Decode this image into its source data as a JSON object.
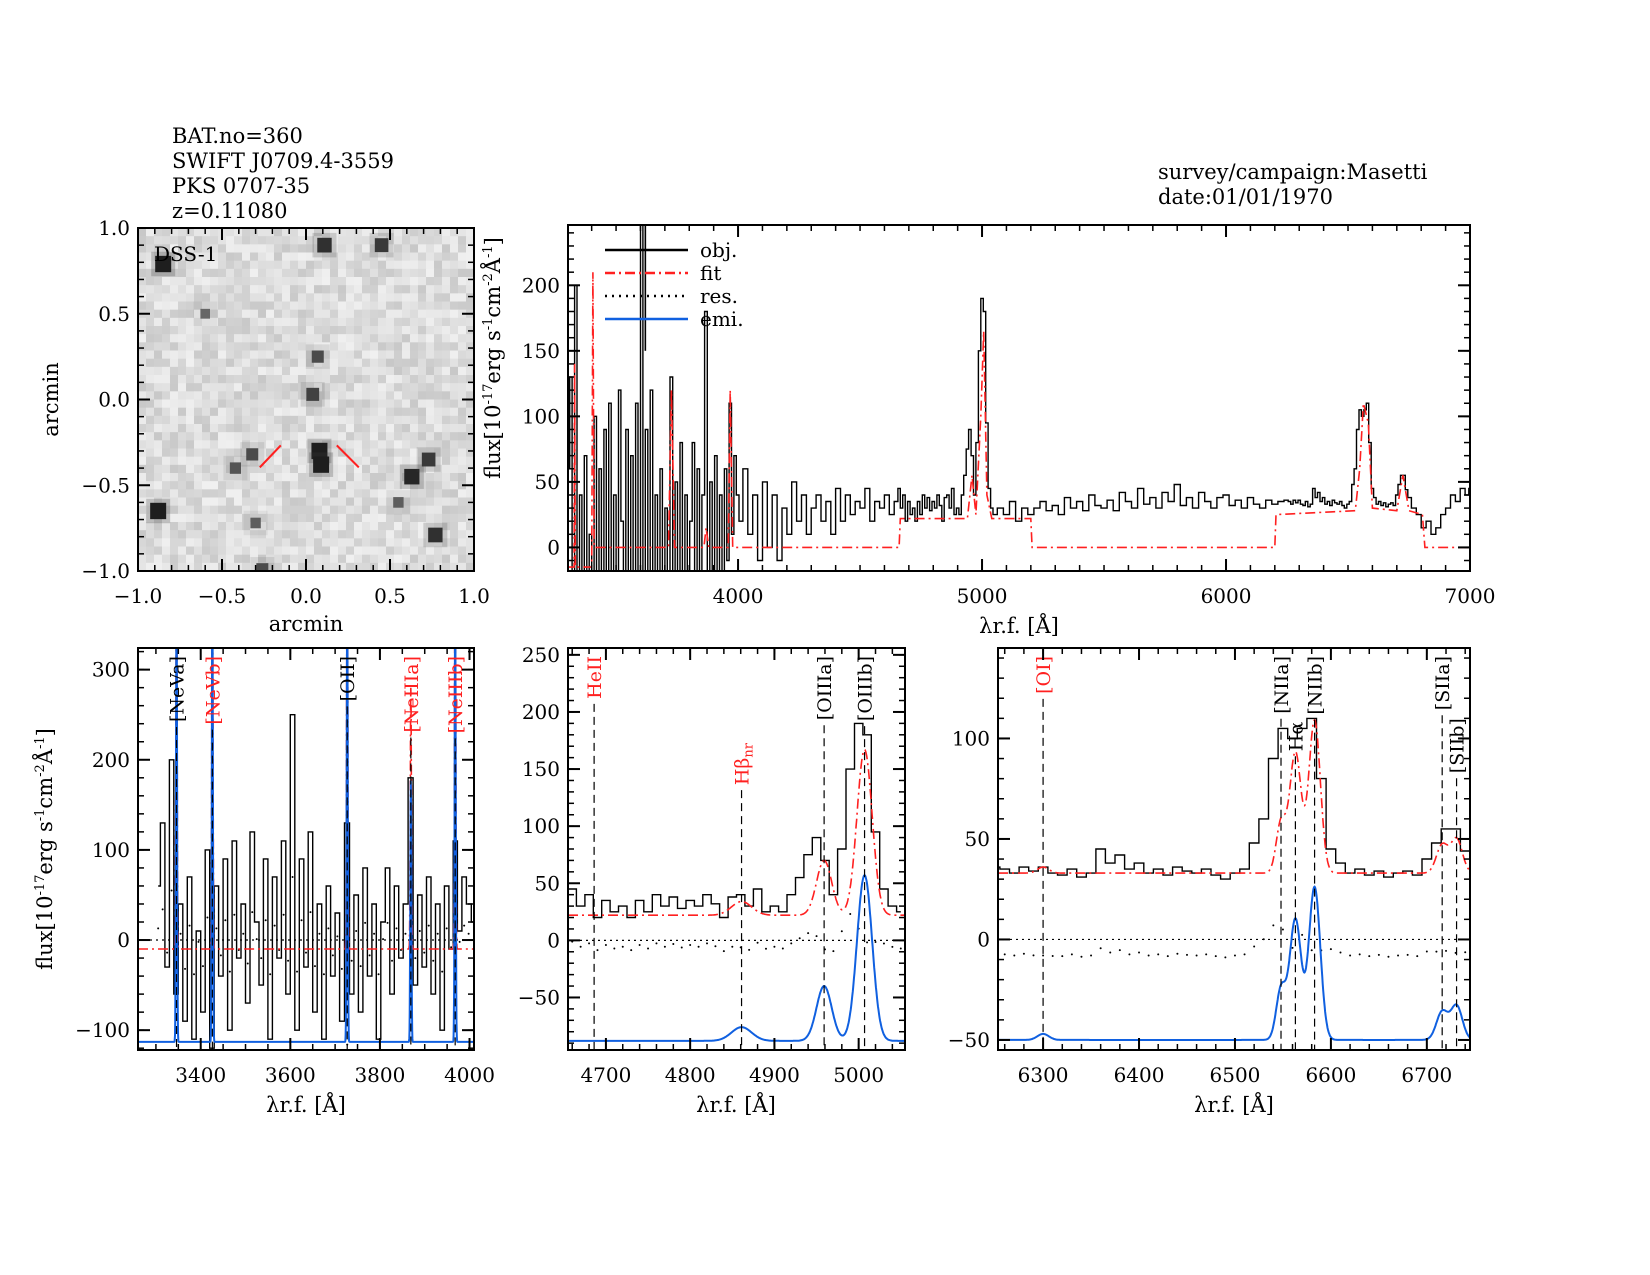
{
  "header": {
    "left": [
      "BAT.no=360",
      "SWIFT J0709.4-3559",
      "PKS 0707-35",
      "z=0.11080"
    ],
    "right": [
      "survey/campaign:Masetti",
      "date:01/01/1970"
    ]
  },
  "colors": {
    "obj": "#000000",
    "fit": "#ff2020",
    "res": "#000000",
    "emi": "#1060e0",
    "marker": "#ff2020"
  },
  "legend": [
    {
      "label": "obj.",
      "style": "solid",
      "color": "#000000"
    },
    {
      "label": "fit",
      "style": "dash-dot",
      "color": "#ff2020"
    },
    {
      "label": "res.",
      "style": "dotted",
      "color": "#000000"
    },
    {
      "label": "emi.",
      "style": "solid",
      "color": "#1060e0"
    }
  ],
  "chart_data": [
    {
      "type": "image",
      "title": "DSS-1",
      "xlabel": "arcmin",
      "ylabel": "arcmin",
      "xlim": [
        -1.0,
        1.0
      ],
      "ylim": [
        -1.0,
        1.0
      ],
      "xticks": [
        "-1.0",
        "-0.5",
        "0.0",
        "0.5",
        "1.0"
      ],
      "yticks": [
        "-1.0",
        "-0.5",
        "0.0",
        "0.5",
        "1.0"
      ],
      "stars": [
        [
          -0.85,
          0.79,
          1.0
        ],
        [
          0.11,
          0.9,
          0.8
        ],
        [
          0.45,
          0.9,
          0.7
        ],
        [
          0.07,
          0.25,
          0.5
        ],
        [
          0.04,
          0.03,
          0.6
        ],
        [
          0.08,
          -0.3,
          1.0
        ],
        [
          0.09,
          -0.38,
          1.0
        ],
        [
          -0.32,
          -0.32,
          0.5
        ],
        [
          -0.42,
          -0.4,
          0.4
        ],
        [
          0.63,
          -0.45,
          0.9
        ],
        [
          0.73,
          -0.35,
          0.7
        ],
        [
          -0.88,
          -0.65,
          1.0
        ],
        [
          0.77,
          -0.79,
          0.8
        ],
        [
          -0.26,
          -0.99,
          0.5
        ],
        [
          -0.3,
          -0.72,
          0.3
        ],
        [
          0.55,
          -0.6,
          0.3
        ],
        [
          -0.6,
          0.5,
          0.2
        ]
      ],
      "target_marker_color": "#ff2020"
    },
    {
      "type": "line",
      "xlabel": "λr.f. [Å]",
      "ylabel": "flux[10-17erg s-1cm-2Å-1]",
      "xlim": [
        3303,
        7000
      ],
      "ylim": [
        -18,
        246
      ],
      "xticks": [
        4000,
        5000,
        6000,
        7000
      ],
      "yticks": [
        0,
        50,
        100,
        150,
        200
      ],
      "legend": "top-left",
      "fit": [
        [
          3305,
          -15
        ],
        [
          3328,
          -15
        ],
        [
          3330,
          140
        ],
        [
          3333,
          -15
        ],
        [
          3400,
          -15
        ],
        [
          3405,
          210
        ],
        [
          3410,
          0
        ],
        [
          3715,
          0
        ],
        [
          3727,
          120
        ],
        [
          3740,
          0
        ],
        [
          3860,
          0
        ],
        [
          3869,
          15
        ],
        [
          3880,
          0
        ],
        [
          3960,
          0
        ],
        [
          3968,
          120
        ],
        [
          3978,
          0
        ],
        [
          4660,
          0
        ],
        [
          4665,
          22
        ],
        [
          4940,
          22
        ],
        [
          4959,
          55
        ],
        [
          4975,
          25
        ],
        [
          4995,
          100
        ],
        [
          5007,
          165
        ],
        [
          5020,
          40
        ],
        [
          5040,
          22
        ],
        [
          5200,
          22
        ],
        [
          5205,
          0
        ],
        [
          6200,
          0
        ],
        [
          6205,
          25
        ],
        [
          6530,
          28
        ],
        [
          6548,
          60
        ],
        [
          6563,
          110
        ],
        [
          6583,
          95
        ],
        [
          6600,
          30
        ],
        [
          6700,
          28
        ],
        [
          6725,
          55
        ],
        [
          6750,
          28
        ],
        [
          6805,
          25
        ],
        [
          6815,
          0
        ],
        [
          7000,
          0
        ]
      ]
    },
    {
      "type": "line",
      "xlabel": "λr.f. [Å]",
      "ylabel": "flux[10-17erg s-1cm-2Å-1]",
      "xlim": [
        3260,
        4010
      ],
      "ylim": [
        -122,
        324
      ],
      "xticks": [
        3400,
        3600,
        3800,
        4000
      ],
      "yticks": [
        -100,
        0,
        100,
        200,
        300
      ],
      "continuum": -10,
      "emi_offset": -113,
      "lines": [
        {
          "label": "[NeVa]",
          "x": 3346,
          "amp": 500,
          "sigma": 1.2,
          "color": "#000000"
        },
        {
          "label": "[NeVb]",
          "x": 3426,
          "amp": 500,
          "sigma": 1.2,
          "color": "#ff2020"
        },
        {
          "label": "[OII]",
          "x": 3727,
          "amp": 500,
          "sigma": 1.2,
          "color": "#000000"
        },
        {
          "label": "[NeIIIa]",
          "x": 3869,
          "amp": 290,
          "sigma": 1.2,
          "color": "#ff2020"
        },
        {
          "label": "[NeIIIb]",
          "x": 3968,
          "amp": 500,
          "sigma": 1.2,
          "color": "#ff2020"
        }
      ]
    },
    {
      "type": "line",
      "xlabel": "λr.f. [Å]",
      "ylabel": "",
      "xlim": [
        4655,
        5055
      ],
      "ylim": [
        -96,
        256
      ],
      "xticks": [
        4700,
        4800,
        4900,
        5000
      ],
      "yticks": [
        -50,
        0,
        50,
        100,
        150,
        200,
        250
      ],
      "continuum": 22,
      "emi_offset": -88,
      "lines": [
        {
          "label": "HeII",
          "x": 4686,
          "amp": 0,
          "sigma": 8,
          "color": "#ff2020"
        },
        {
          "label": "Hβ",
          "sub": "nr",
          "x": 4861,
          "amp": 12,
          "sigma": 12,
          "color": "#ff2020"
        },
        {
          "label": "[OIIIa]",
          "x": 4959,
          "amp": 48,
          "sigma": 9,
          "color": "#000000"
        },
        {
          "label": "[OIIIb]",
          "x": 5007,
          "amp": 145,
          "sigma": 9,
          "color": "#000000"
        }
      ]
    },
    {
      "type": "line",
      "xlabel": "λr.f. [Å]",
      "ylabel": "",
      "xlim": [
        6253,
        6745
      ],
      "ylim": [
        -55,
        145
      ],
      "xticks": [
        6300,
        6400,
        6500,
        6600,
        6700
      ],
      "yticks": [
        -50,
        0,
        50,
        100
      ],
      "continuum": 33,
      "emi_offset": -50,
      "lines": [
        {
          "label": "[OI]",
          "x": 6300,
          "amp": 3,
          "sigma": 6,
          "color": "#ff2020"
        },
        {
          "label": "[NIIa]",
          "x": 6548,
          "amp": 25,
          "sigma": 5,
          "color": "#000000"
        },
        {
          "label": "Hα",
          "x": 6563,
          "amp": 60,
          "sigma": 6,
          "color": "#000000"
        },
        {
          "label": "[NIIb]",
          "x": 6583,
          "amp": 76,
          "sigma": 6,
          "color": "#000000"
        },
        {
          "label": "[SIIa]",
          "x": 6716,
          "amp": 14,
          "sigma": 6,
          "color": "#000000"
        },
        {
          "label": "[SIIb]",
          "x": 6731,
          "amp": 17,
          "sigma": 6,
          "color": "#000000"
        }
      ]
    }
  ],
  "spectrum": {
    "x": [
      3305,
      3315,
      3325,
      3335,
      3345,
      3355,
      3365,
      3375,
      3385,
      3395,
      3405,
      3415,
      3425,
      3435,
      3445,
      3455,
      3465,
      3475,
      3485,
      3495,
      3505,
      3515,
      3525,
      3535,
      3545,
      3555,
      3565,
      3575,
      3585,
      3595,
      3605,
      3615,
      3625,
      3635,
      3645,
      3655,
      3665,
      3675,
      3685,
      3695,
      3705,
      3715,
      3727,
      3737,
      3747,
      3757,
      3767,
      3777,
      3787,
      3797,
      3807,
      3817,
      3827,
      3837,
      3847,
      3857,
      3869,
      3879,
      3889,
      3899,
      3909,
      3919,
      3929,
      3939,
      3949,
      3959,
      3968,
      3978,
      3988,
      3998,
      4010,
      4030,
      4050,
      4070,
      4090,
      4110,
      4130,
      4150,
      4170,
      4190,
      4210,
      4230,
      4250,
      4270,
      4290,
      4310,
      4330,
      4350,
      4370,
      4390,
      4410,
      4430,
      4450,
      4470,
      4490,
      4510,
      4530,
      4550,
      4570,
      4590,
      4610,
      4630,
      4650,
      4660,
      4670,
      4680,
      4690,
      4700,
      4710,
      4720,
      4730,
      4740,
      4750,
      4760,
      4770,
      4780,
      4790,
      4800,
      4810,
      4820,
      4830,
      4840,
      4850,
      4860,
      4870,
      4880,
      4890,
      4900,
      4910,
      4920,
      4930,
      4940,
      4950,
      4960,
      4970,
      4980,
      4990,
      5000,
      5010,
      5020,
      5030,
      5040,
      5050,
      5075,
      5100,
      5125,
      5150,
      5175,
      5200,
      5225,
      5250,
      5275,
      5300,
      5325,
      5350,
      5375,
      5400,
      5425,
      5450,
      5475,
      5500,
      5525,
      5550,
      5575,
      5600,
      5625,
      5650,
      5675,
      5700,
      5725,
      5750,
      5775,
      5800,
      5825,
      5850,
      5875,
      5900,
      5925,
      5950,
      5975,
      6000,
      6025,
      6050,
      6075,
      6100,
      6125,
      6150,
      6175,
      6200,
      6225,
      6250,
      6260,
      6270,
      6280,
      6290,
      6300,
      6310,
      6320,
      6330,
      6340,
      6350,
      6360,
      6370,
      6380,
      6390,
      6400,
      6410,
      6420,
      6430,
      6440,
      6450,
      6460,
      6470,
      6480,
      6490,
      6500,
      6510,
      6520,
      6530,
      6540,
      6550,
      6560,
      6570,
      6580,
      6590,
      6600,
      6610,
      6620,
      6630,
      6640,
      6650,
      6660,
      6670,
      6680,
      6690,
      6700,
      6710,
      6720,
      6730,
      6740,
      6750,
      6770,
      6790,
      6810,
      6830,
      6850,
      6870,
      6890,
      6910,
      6930,
      6950,
      6970,
      6990,
      7000
    ],
    "y": [
      60,
      130,
      -30,
      200,
      -60,
      40,
      -90,
      70,
      -110,
      10,
      -80,
      100,
      -120,
      60,
      -40,
      90,
      -100,
      110,
      -20,
      40,
      -70,
      120,
      20,
      -50,
      90,
      -110,
      70,
      -20,
      110,
      -60,
      250,
      -100,
      90,
      -30,
      120,
      -80,
      40,
      -110,
      60,
      -40,
      30,
      -90,
      130,
      -60,
      50,
      -80,
      80,
      -40,
      40,
      -110,
      20,
      80,
      -60,
      60,
      -20,
      40,
      180,
      -50,
      50,
      -30,
      70,
      -60,
      40,
      -100,
      60,
      -10,
      110,
      10,
      70,
      40,
      20,
      60,
      10,
      40,
      -10,
      50,
      0,
      40,
      -10,
      30,
      10,
      50,
      20,
      40,
      10,
      30,
      40,
      20,
      35,
      10,
      45,
      20,
      40,
      25,
      35,
      30,
      45,
      20,
      35,
      30,
      40,
      25,
      35,
      45,
      30,
      40,
      20,
      35,
      25,
      30,
      20,
      35,
      25,
      40,
      30,
      38,
      28,
      35,
      30,
      40,
      32,
      20,
      38,
      40,
      30,
      45,
      25,
      30,
      25,
      40,
      55,
      75,
      90,
      70,
      40,
      80,
      150,
      190,
      180,
      95,
      45,
      30,
      25,
      30,
      25,
      35,
      20,
      30,
      25,
      30,
      35,
      28,
      32,
      25,
      38,
      30,
      35,
      28,
      40,
      32,
      30,
      36,
      28,
      42,
      35,
      30,
      45,
      33,
      38,
      30,
      42,
      35,
      48,
      32,
      38,
      30,
      42,
      35,
      30,
      38,
      40,
      32,
      36,
      30,
      38,
      33,
      30,
      36,
      33,
      35,
      36,
      35,
      33,
      36,
      34,
      36,
      33,
      32,
      35,
      31,
      33,
      45,
      38,
      42,
      35,
      38,
      33,
      35,
      32,
      36,
      34,
      33,
      35,
      32,
      30,
      33,
      35,
      48,
      60,
      90,
      105,
      100,
      105,
      110,
      80,
      45,
      38,
      33,
      35,
      32,
      34,
      31,
      33,
      34,
      32,
      40,
      48,
      55,
      55,
      44,
      38,
      30,
      25,
      15,
      20,
      10,
      15,
      25,
      30,
      40,
      35,
      45,
      40,
      45
    ]
  }
}
